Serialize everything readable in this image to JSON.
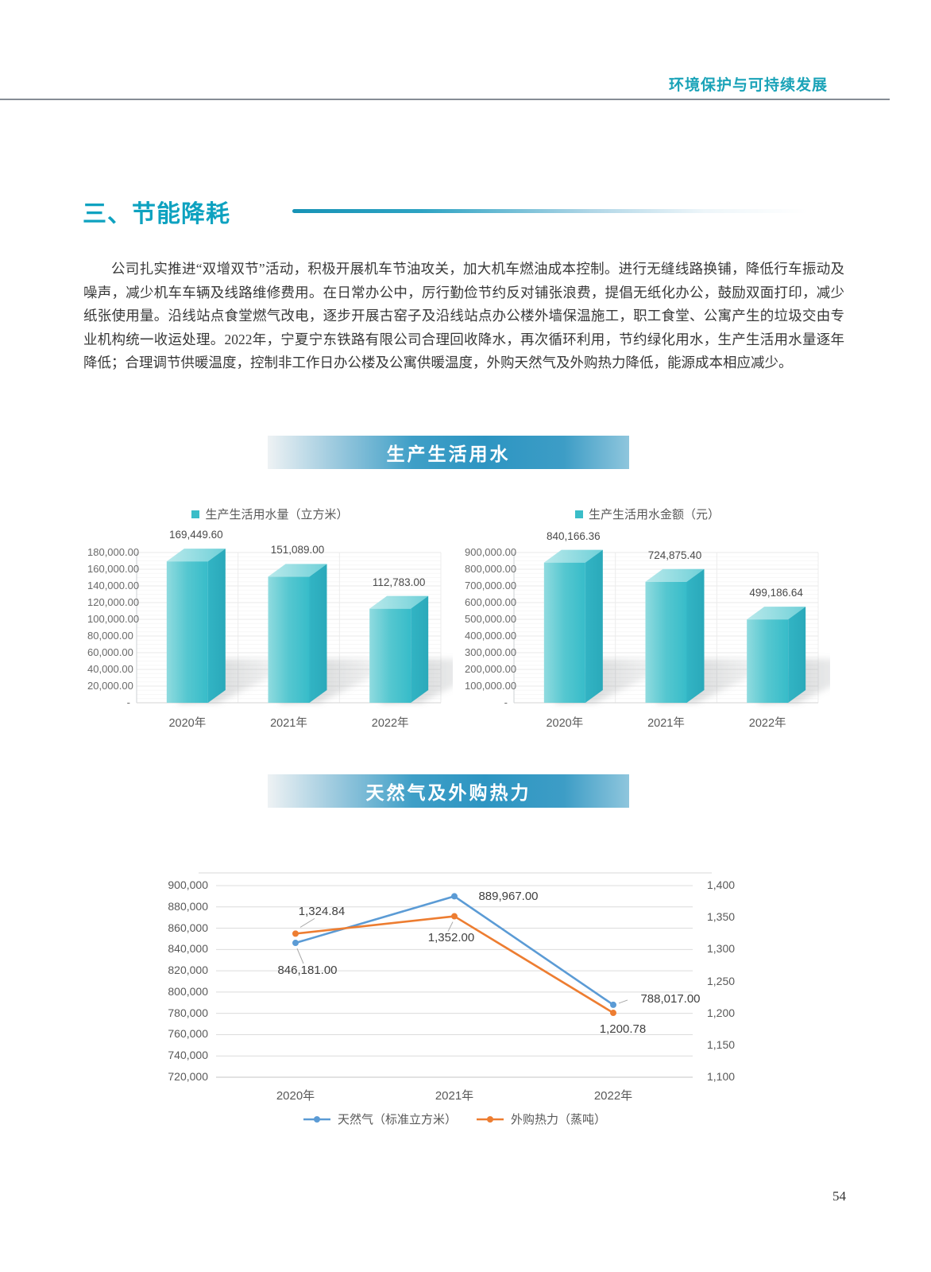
{
  "header": {
    "title": "环境保护与可持续发展"
  },
  "section": {
    "title": "三、节能降耗",
    "paragraph": "公司扎实推进“双增双节”活动，积极开展机车节油攻关，加大机车燃油成本控制。进行无缝线路换铺，降低行车振动及噪声，减少机车车辆及线路维修费用。在日常办公中，厉行勤俭节约反对铺张浪费，提倡无纸化办公，鼓励双面打印，减少纸张使用量。沿线站点食堂燃气改电，逐步开展古窑子及沿线站点办公楼外墙保温施工，职工食堂、公寓产生的垃圾交由专业机构统一收运处理。2022年，宁夏宁东铁路有限公司合理回收降水，再次循环利用，节约绿化用水，生产生活用水量逐年降低；合理调节供暖温度，控制非工作日办公楼及公寓供暖温度，外购天然气及外购热力降低，能源成本相应减少。"
  },
  "banners": {
    "water": "生产生活用水",
    "energy": "天然气及外购热力"
  },
  "page_number": "54",
  "colors": {
    "heading_teal": "#0ea2c0",
    "banner_blue": "#2d95c2",
    "bar_teal": "#3abdc8",
    "line_blue": "#5B9BD5",
    "line_orange": "#ED7D31"
  },
  "chart_data": [
    {
      "id": "chart-water-volume",
      "type": "bar",
      "legend": "生产生活用水量（立方米）",
      "categories": [
        "2020年",
        "2021年",
        "2022年"
      ],
      "values": [
        169449.6,
        151089.0,
        112783.0
      ],
      "value_labels": [
        "169,449.60",
        "151,089.00",
        "112,783.00"
      ],
      "ylim": [
        0,
        180000
      ],
      "yticks": [
        "180,000.00",
        "160,000.00",
        "140,000.00",
        "120,000.00",
        "100,000.00",
        "80,000.00",
        "60,000.00",
        "40,000.00",
        "20,000.00",
        "-"
      ],
      "bar_color": "#3abdc8",
      "grid": true,
      "legend_position": "top"
    },
    {
      "id": "chart-water-cost",
      "type": "bar",
      "legend": "生产生活用水金额（元）",
      "categories": [
        "2020年",
        "2021年",
        "2022年"
      ],
      "values": [
        840166.36,
        724875.4,
        499186.64
      ],
      "value_labels": [
        "840,166.36",
        "724,875.40",
        "499,186.64"
      ],
      "ylim": [
        0,
        900000
      ],
      "yticks": [
        "900,000.00",
        "800,000.00",
        "700,000.00",
        "600,000.00",
        "500,000.00",
        "400,000.00",
        "300,000.00",
        "200,000.00",
        "100,000.00",
        "-"
      ],
      "bar_color": "#3abdc8",
      "grid": true,
      "legend_position": "top"
    },
    {
      "id": "chart-gas-heat",
      "type": "line",
      "categories": [
        "2020年",
        "2021年",
        "2022年"
      ],
      "series": [
        {
          "name": "天然气（标准立方米）",
          "axis": "left",
          "color": "#5B9BD5",
          "values": [
            846181.0,
            889967.0,
            788017.0
          ],
          "value_labels": [
            "846,181.00",
            "889,967.00",
            "788,017.00"
          ]
        },
        {
          "name": "外购热力（蒸吨）",
          "axis": "right",
          "color": "#ED7D31",
          "values": [
            1324.84,
            1352.0,
            1200.78
          ],
          "value_labels": [
            "1,324.84",
            "1,352.00",
            "1,200.78"
          ]
        }
      ],
      "left_axis": {
        "min": 720000,
        "max": 900000,
        "ticks": [
          "900,000",
          "880,000",
          "860,000",
          "840,000",
          "820,000",
          "800,000",
          "780,000",
          "760,000",
          "740,000",
          "720,000"
        ]
      },
      "right_axis": {
        "min": 1100,
        "max": 1400,
        "ticks": [
          "1,400",
          "1,350",
          "1,300",
          "1,250",
          "1,200",
          "1,150",
          "1,100"
        ]
      },
      "grid": true,
      "legend_position": "bottom"
    }
  ]
}
